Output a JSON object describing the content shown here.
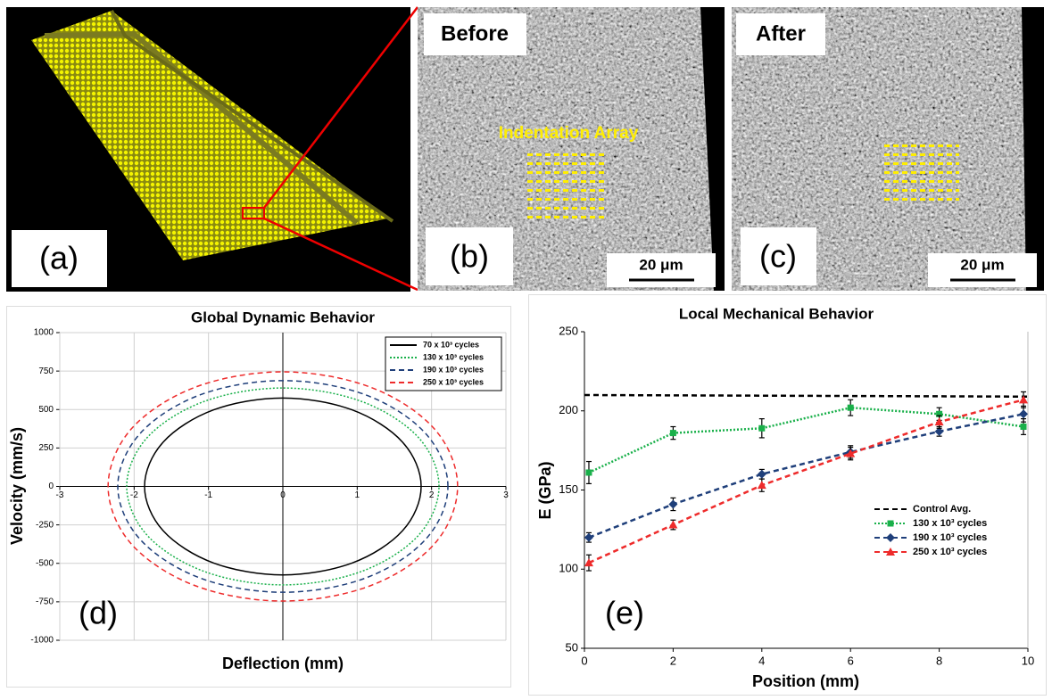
{
  "panels": {
    "a": {
      "label": "(a)"
    },
    "b": {
      "label": "(b)",
      "caption": "Before",
      "annotation": "Indentation Array",
      "scale_bar": "20 μm"
    },
    "c": {
      "label": "(c)",
      "caption": "After",
      "scale_bar": "20 μm"
    },
    "d": {
      "label": "(d)"
    },
    "e": {
      "label": "(e)"
    }
  },
  "chart_data": [
    {
      "type": "line",
      "closed": true,
      "title": "Global Dynamic Behavior",
      "x_label": "Deflection (mm)",
      "y_label": "Velocity (mm/s)",
      "xlim": [
        -3,
        3
      ],
      "ylim": [
        -1000,
        1000
      ],
      "xticks": [
        -3,
        -2,
        -1,
        0,
        1,
        2,
        3
      ],
      "yticks": [
        -1000,
        -750,
        -500,
        -250,
        0,
        250,
        500,
        750,
        1000
      ],
      "grid": true,
      "legend": "upper-right",
      "series": [
        {
          "name": "70 x 10³ cycles",
          "color": "#000000",
          "dash": "solid",
          "x": [
            1.86,
            1.61,
            0.93,
            0,
            -0.93,
            -1.61,
            -1.86,
            -1.61,
            -0.93,
            0,
            0.93,
            1.61
          ],
          "values": [
            0,
            288,
            498,
            575,
            498,
            288,
            0,
            -288,
            -498,
            -575,
            -498,
            -288
          ]
        },
        {
          "name": "130 x 10³ cycles",
          "color": "#19b04a",
          "dash": "dotted",
          "x": [
            2.1,
            1.82,
            1.05,
            0,
            -1.05,
            -1.82,
            -2.1,
            -1.82,
            -1.05,
            0,
            1.05,
            1.82
          ],
          "values": [
            0,
            320,
            554,
            640,
            554,
            320,
            0,
            -320,
            -554,
            -640,
            -554,
            -320
          ]
        },
        {
          "name": "190 x 10³ cycles",
          "color": "#1f3f7a",
          "dash": "dashed",
          "x": [
            2.22,
            1.92,
            1.11,
            0,
            -1.11,
            -1.92,
            -2.22,
            -1.92,
            -1.11,
            0,
            1.11,
            1.92
          ],
          "values": [
            0,
            344,
            596,
            688,
            596,
            344,
            0,
            -344,
            -596,
            -688,
            -596,
            -344
          ]
        },
        {
          "name": "250 x 10³ cycles",
          "color": "#ee2b2b",
          "dash": "dashed",
          "x": [
            2.35,
            2.04,
            1.18,
            0,
            -1.18,
            -2.04,
            -2.35,
            -2.04,
            -1.18,
            0,
            1.18,
            2.04
          ],
          "values": [
            0,
            373,
            645,
            745,
            645,
            373,
            0,
            -373,
            -645,
            -745,
            -645,
            -373
          ]
        }
      ]
    },
    {
      "type": "line",
      "closed": false,
      "title": "Local Mechanical Behavior",
      "x_label": "Position (mm)",
      "y_label": "E (GPa)",
      "xlim": [
        0,
        10
      ],
      "ylim": [
        50,
        250
      ],
      "xticks": [
        0,
        2,
        4,
        6,
        8,
        10
      ],
      "yticks": [
        50,
        100,
        150,
        200,
        250
      ],
      "grid": false,
      "legend": "lower-right",
      "series": [
        {
          "name": "Control Avg.",
          "color": "#000000",
          "dash": "dashed",
          "marker": null,
          "x": [
            0,
            10
          ],
          "values": [
            210,
            209
          ]
        },
        {
          "name": "130 x 10³ cycles",
          "color": "#19b04a",
          "dash": "dotted",
          "marker": "square",
          "x": [
            0.1,
            2,
            4,
            6,
            8,
            9.9
          ],
          "values": [
            161,
            186,
            189,
            202,
            198,
            190
          ],
          "errors": [
            7,
            4,
            6,
            5,
            4,
            5
          ]
        },
        {
          "name": "190 x 10³ cycles",
          "color": "#1f3f7a",
          "dash": "dashed",
          "marker": "diamond",
          "x": [
            0.1,
            2,
            4,
            6,
            8,
            9.9
          ],
          "values": [
            120,
            141,
            160,
            174,
            187,
            198
          ],
          "errors": [
            3,
            4,
            3,
            4,
            3,
            5
          ]
        },
        {
          "name": "250 x 10³ cycles",
          "color": "#ee2b2b",
          "dash": "dashed",
          "marker": "triangle",
          "x": [
            0.1,
            2,
            4,
            6,
            8,
            9.9
          ],
          "values": [
            104,
            128,
            153,
            173,
            193,
            207
          ],
          "errors": [
            5,
            3,
            4,
            4,
            4,
            5
          ]
        }
      ]
    }
  ]
}
